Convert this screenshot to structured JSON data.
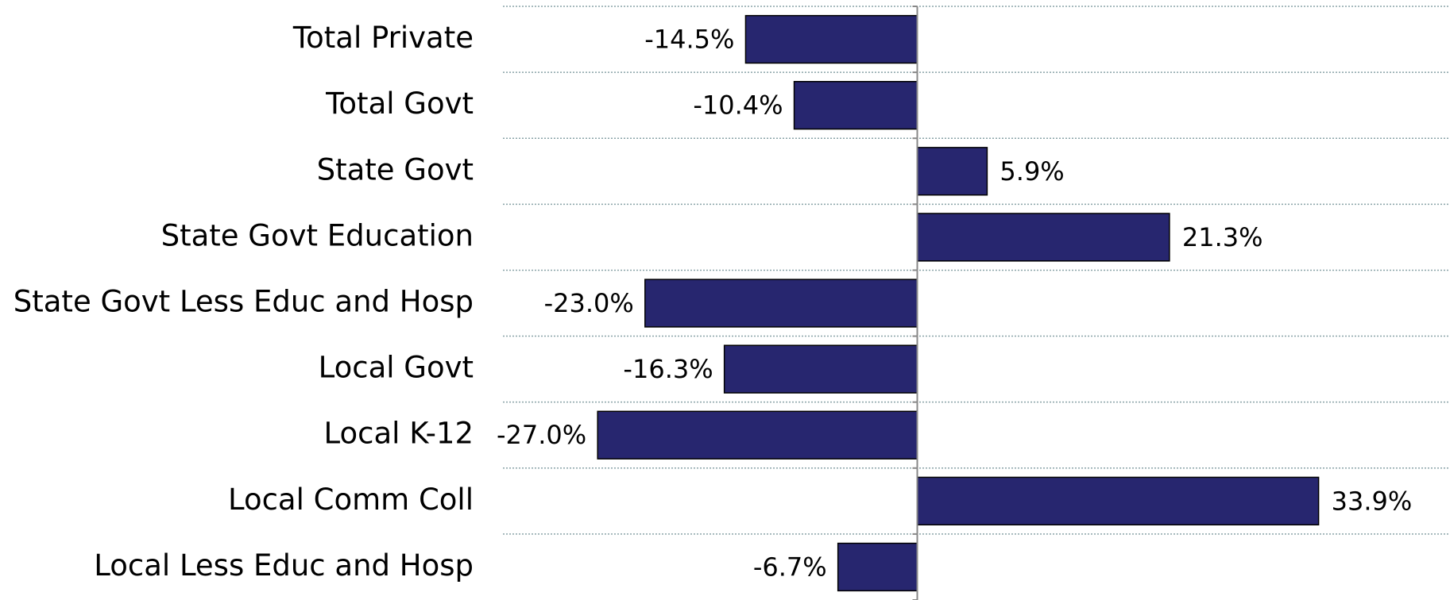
{
  "chart_data": {
    "type": "barh",
    "categories": [
      "Total Private",
      "Total Govt",
      "State Govt",
      "State Govt Education",
      "State Govt Less Educ and Hosp",
      "Local Govt",
      "Local K-12",
      "Local Comm Coll",
      "Local Less Educ and Hosp"
    ],
    "values": [
      -14.5,
      -10.4,
      5.9,
      21.3,
      -23.0,
      -16.3,
      -27.0,
      33.9,
      -6.7
    ],
    "value_labels": [
      "-14.5%",
      "-10.4%",
      "5.9%",
      "21.3%",
      "-23.0%",
      "-16.3%",
      "-27.0%",
      "33.9%",
      "-6.7%"
    ],
    "color": "#27266f",
    "xlim": [
      -35,
      45
    ]
  }
}
